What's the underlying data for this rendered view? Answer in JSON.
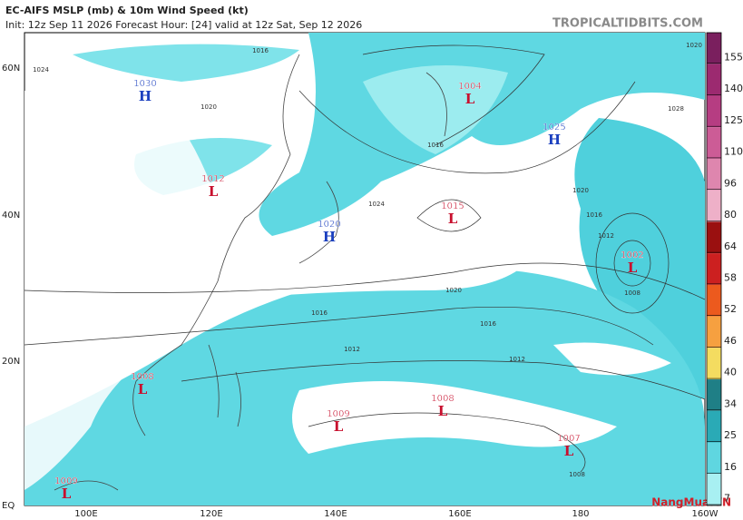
{
  "header": {
    "title": "EC-AIFS MSLP (mb) & 10m Wind Speed (kt)",
    "subtitle": "Init: 12z Sep 11 2026   Forecast Hour: [24]   valid at 12z Sat, Sep 12 2026",
    "source": "TROPICALTIDBITS.COM"
  },
  "watermark": "NangMua.VN",
  "map": {
    "lat_labels": [
      "60N",
      "40N",
      "20N",
      "EQ"
    ],
    "lon_labels": [
      "100E",
      "120E",
      "140E",
      "160E",
      "180",
      "160W"
    ],
    "centers": [
      {
        "type": "H",
        "value": "1030"
      },
      {
        "type": "L",
        "value": "1012"
      },
      {
        "type": "H",
        "value": "1020"
      },
      {
        "type": "L",
        "value": "1004"
      },
      {
        "type": "H",
        "value": "1025"
      },
      {
        "type": "L",
        "value": "1015"
      },
      {
        "type": "L",
        "value": "1002"
      },
      {
        "type": "L",
        "value": "1008"
      },
      {
        "type": "L",
        "value": "1009"
      },
      {
        "type": "L",
        "value": "1008"
      },
      {
        "type": "L",
        "value": "1007"
      },
      {
        "type": "L",
        "value": "1009"
      }
    ],
    "isobar_labels": [
      "1024",
      "1016",
      "1020",
      "1016",
      "1024",
      "1020",
      "1016",
      "1016",
      "1012",
      "1012",
      "1008",
      "1008",
      "1020",
      "1016",
      "1012",
      "1028",
      "1020"
    ]
  },
  "colorbar": {
    "ticks": [
      155,
      140,
      125,
      110,
      96,
      80,
      64,
      58,
      52,
      46,
      40,
      34,
      25,
      16,
      7
    ],
    "colors": [
      "#7a1f5e",
      "#9c2a70",
      "#b63d82",
      "#cc5c96",
      "#de86ae",
      "#eeb0c8",
      "#9a1010",
      "#cc2020",
      "#ec5a1e",
      "#f6a040",
      "#f4dc60",
      "#1f7f86",
      "#2aaab6",
      "#5fd6e0",
      "#a8f0f2"
    ]
  }
}
